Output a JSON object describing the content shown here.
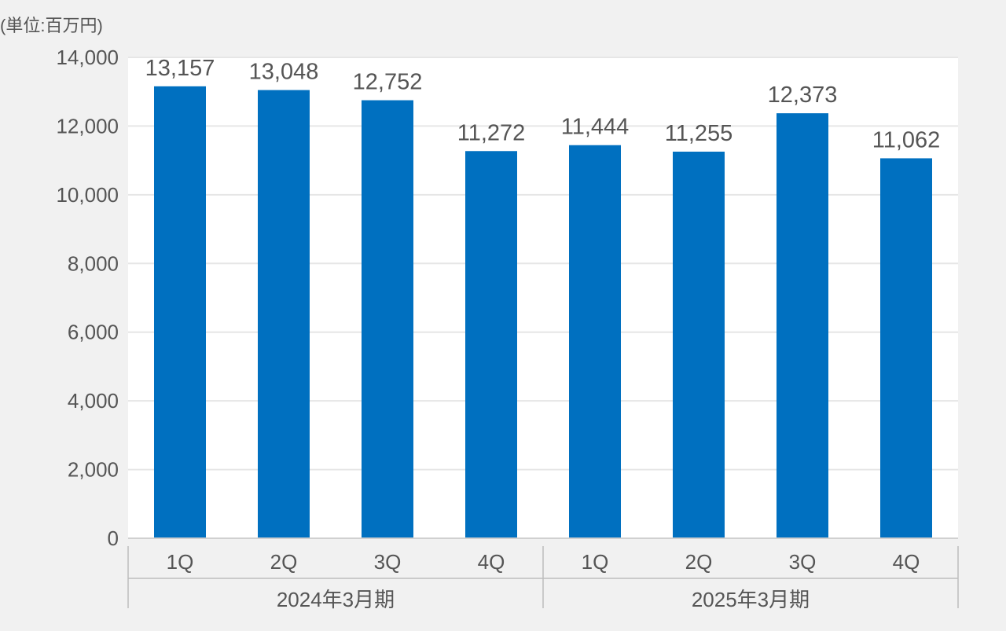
{
  "chart_data": {
    "type": "bar",
    "unit_label": "(単位:百万円)",
    "categories": [
      "1Q",
      "2Q",
      "3Q",
      "4Q",
      "1Q",
      "2Q",
      "3Q",
      "4Q"
    ],
    "groups": [
      {
        "label": "2024年3月期",
        "count": 4
      },
      {
        "label": "2025年3月期",
        "count": 4
      }
    ],
    "values": [
      13157,
      13048,
      12752,
      11272,
      11444,
      11255,
      12373,
      11062
    ],
    "data_labels": [
      "13,157",
      "13,048",
      "12,752",
      "11,272",
      "11,444",
      "11,255",
      "12,373",
      "11,062"
    ],
    "yticks": [
      0,
      2000,
      4000,
      6000,
      8000,
      10000,
      12000,
      14000
    ],
    "ytick_labels": [
      "0",
      "2,000",
      "4,000",
      "6,000",
      "8,000",
      "10,000",
      "12,000",
      "14,000"
    ],
    "ylim": [
      0,
      14000
    ],
    "grid": true,
    "bar_color": "#0070c0",
    "plot_background": "#ffffff",
    "gridline_color": "#e6e6e6",
    "text_color": "#555555"
  }
}
